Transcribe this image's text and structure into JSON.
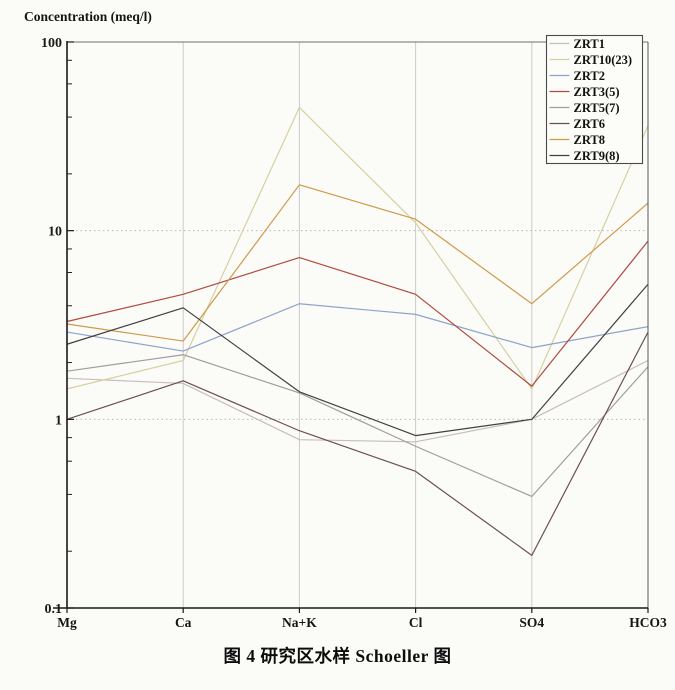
{
  "caption": "图 4  研究区水样 Schoeller 图",
  "chart_data": {
    "type": "line",
    "title": "",
    "ylabel": "Concentration (meq/l)",
    "xlabel": "",
    "y_scale": "log",
    "ylim": [
      0.1,
      100
    ],
    "y_ticks": [
      100,
      10,
      1,
      0.1
    ],
    "y_tick_labels": [
      "100",
      "10",
      "1",
      "0.1"
    ],
    "x_categories": [
      "Mg",
      "Ca",
      "Na+K",
      "Cl",
      "SO4",
      "HCO3"
    ],
    "legend_position": "top-right",
    "grid": {
      "vertical_color": "#cbcbcb",
      "horizontal_color": "#b8b8b8",
      "minor_tick_multiples": [
        2,
        4,
        6,
        8
      ]
    },
    "series": [
      {
        "name": "ZRT1",
        "color": "#c8bebc",
        "values": [
          1.65,
          1.55,
          0.78,
          0.76,
          1.0,
          2.05
        ]
      },
      {
        "name": "ZRT10(23)",
        "color": "#d7d0a2",
        "values": [
          1.45,
          2.05,
          45.0,
          11.0,
          1.45,
          36.0
        ]
      },
      {
        "name": "ZRT2",
        "color": "#8ea3c7",
        "values": [
          2.9,
          2.3,
          4.1,
          3.6,
          2.4,
          3.1
        ]
      },
      {
        "name": "ZRT3(5)",
        "color": "#b04b41",
        "values": [
          3.3,
          4.6,
          7.2,
          4.6,
          1.5,
          8.8
        ]
      },
      {
        "name": "ZRT5(7)",
        "color": "#a29d9d",
        "values": [
          1.8,
          2.2,
          1.38,
          0.72,
          0.39,
          1.9
        ]
      },
      {
        "name": "ZRT6",
        "color": "#6b4f53",
        "values": [
          1.0,
          1.6,
          0.87,
          0.53,
          0.19,
          2.9
        ]
      },
      {
        "name": "ZRT8",
        "color": "#d09a49",
        "values": [
          3.2,
          2.6,
          17.5,
          11.5,
          4.1,
          14.0
        ]
      },
      {
        "name": "ZRT9(8)",
        "color": "#403f43",
        "values": [
          2.5,
          3.9,
          1.4,
          0.82,
          1.0,
          5.2
        ]
      }
    ]
  }
}
